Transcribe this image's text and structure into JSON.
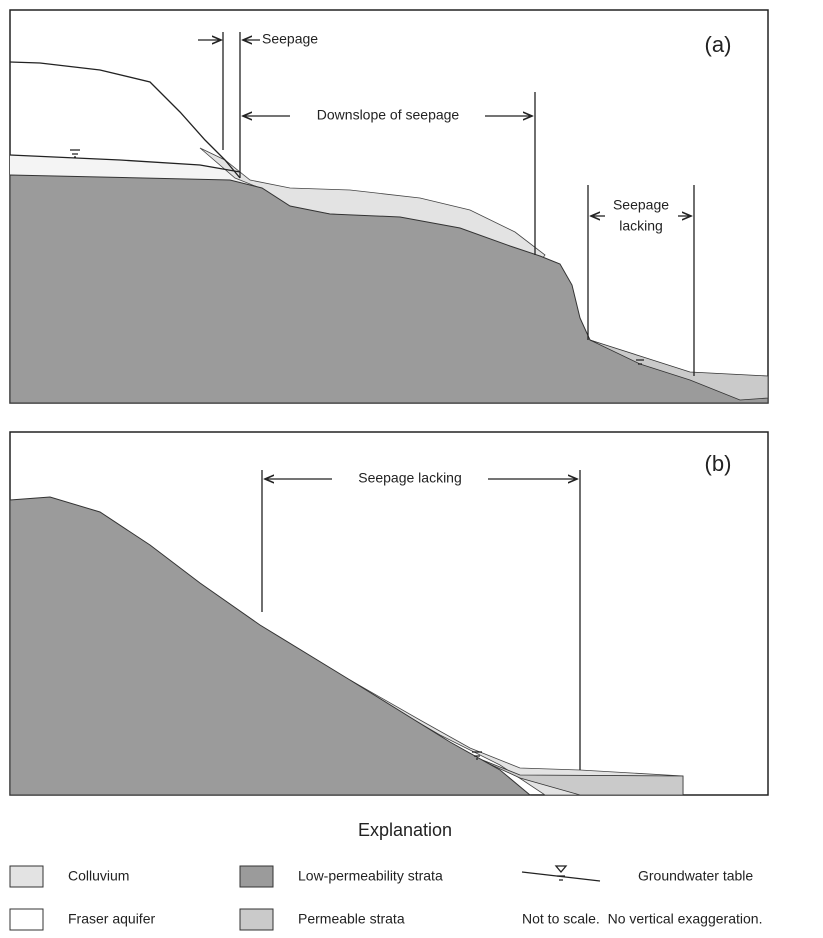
{
  "panels": [
    {
      "label": "(a)",
      "seepage": "Seepage",
      "downslope": "Downslope of seepage",
      "lacking": [
        "Seepage",
        "lacking"
      ]
    },
    {
      "label": "(b)",
      "lacking": "Seepage lacking"
    }
  ],
  "legend": {
    "title": "Explanation",
    "items": [
      "Colluvium",
      "Low-permeability strata",
      "Groundwater table",
      "Fraser aquifer",
      "Permeable strata"
    ],
    "note": "Not to scale.  No vertical exaggeration."
  }
}
